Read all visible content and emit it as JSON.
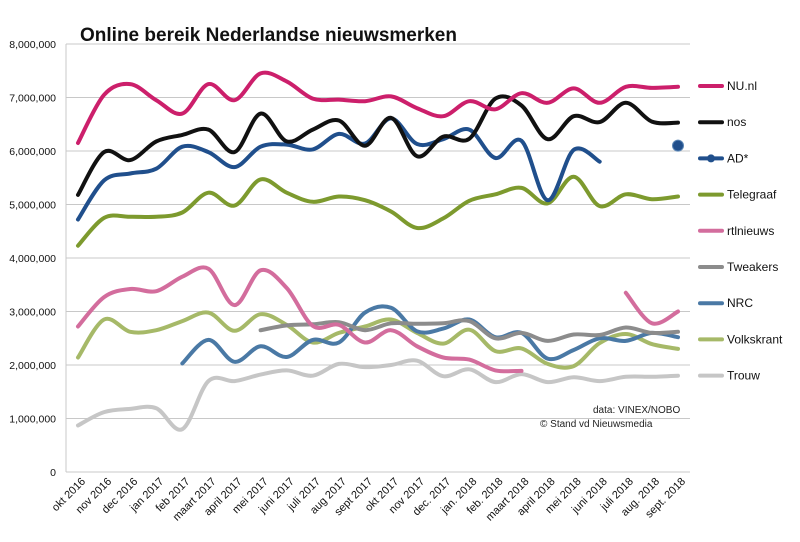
{
  "chart_data": {
    "type": "line",
    "title": "Online bereik Nederlandse nieuwsmerken",
    "xlabel": "",
    "ylabel": "",
    "ylim": [
      0,
      8000000
    ],
    "yticks": [
      0,
      1000000,
      2000000,
      3000000,
      4000000,
      5000000,
      6000000,
      7000000,
      8000000
    ],
    "ytick_labels": [
      "0",
      "1,000,000",
      "2,000,000",
      "3,000,000",
      "4,000,000",
      "5,000,000",
      "6,000,000",
      "7,000,000",
      "8,000,000"
    ],
    "grid": true,
    "legend_position": "right",
    "categories": [
      "okt 2016",
      "nov 2016",
      "dec 2016",
      "jan 2017",
      "feb 2017",
      "maart 2017",
      "april 2017",
      "mei 2017",
      "juni 2017",
      "juli 2017",
      "aug 2017",
      "sept 2017",
      "okt 2017",
      "nov 2017",
      "dec. 2017",
      "jan. 2018",
      "feb. 2018",
      "maart 2018",
      "april 2018",
      "mei 2018",
      "juni 2018",
      "juli 2018",
      "aug. 2018",
      "sept. 2018"
    ],
    "series": [
      {
        "name": "NU.nl",
        "color": "#cc1f6b",
        "values": [
          6150000,
          7050000,
          7250000,
          6950000,
          6700000,
          7250000,
          6950000,
          7450000,
          7300000,
          6980000,
          6960000,
          6930000,
          7020000,
          6800000,
          6650000,
          6930000,
          6780000,
          7080000,
          6900000,
          7170000,
          6900000,
          7200000,
          7180000,
          7200000
        ]
      },
      {
        "name": "nos",
        "color": "#111111",
        "values": [
          5180000,
          5980000,
          5830000,
          6180000,
          6300000,
          6400000,
          5980000,
          6700000,
          6180000,
          6400000,
          6570000,
          6100000,
          6620000,
          5900000,
          6270000,
          6230000,
          6980000,
          6850000,
          6220000,
          6650000,
          6540000,
          6900000,
          6550000,
          6530000
        ]
      },
      {
        "name": "AD*",
        "color": "#204f8c",
        "values": [
          4720000,
          5450000,
          5580000,
          5670000,
          6080000,
          5980000,
          5700000,
          6080000,
          6120000,
          6030000,
          6320000,
          6140000,
          6610000,
          6130000,
          6220000,
          6400000,
          5870000,
          6190000,
          5080000,
          6020000,
          5800000,
          null,
          null,
          null
        ]
      },
      {
        "name": "Telegraaf",
        "color": "#7d9a2e",
        "values": [
          4230000,
          4750000,
          4770000,
          4770000,
          4850000,
          5220000,
          4980000,
          5470000,
          5220000,
          5050000,
          5150000,
          5080000,
          4870000,
          4560000,
          4740000,
          5070000,
          5190000,
          5310000,
          5020000,
          5520000,
          4970000,
          5190000,
          5100000,
          5150000
        ]
      },
      {
        "name": "rtlnieuws",
        "color": "#d36d9d",
        "values": [
          2720000,
          3270000,
          3420000,
          3380000,
          3650000,
          3800000,
          3120000,
          3770000,
          3440000,
          2730000,
          2750000,
          2420000,
          2650000,
          2350000,
          2140000,
          2100000,
          1900000,
          1890000,
          null,
          null,
          null,
          3350000,
          2780000,
          3000000
        ]
      },
      {
        "name": "Tweakers",
        "color": "#8c8c8c",
        "values": [
          null,
          null,
          null,
          null,
          null,
          null,
          null,
          2650000,
          2740000,
          2760000,
          2800000,
          2650000,
          2780000,
          2770000,
          2780000,
          2820000,
          2500000,
          2600000,
          2450000,
          2570000,
          2560000,
          2700000,
          2600000,
          2620000
        ]
      },
      {
        "name": "NRC",
        "color": "#4a79a5",
        "values": [
          null,
          null,
          null,
          null,
          2030000,
          2470000,
          2060000,
          2350000,
          2150000,
          2470000,
          2420000,
          2980000,
          3070000,
          2630000,
          2680000,
          2850000,
          2520000,
          2600000,
          2120000,
          2280000,
          2500000,
          2450000,
          2600000,
          2520000
        ]
      },
      {
        "name": "Volkskrant",
        "color": "#a6b968",
        "values": [
          2140000,
          2850000,
          2620000,
          2650000,
          2820000,
          2980000,
          2640000,
          2950000,
          2750000,
          2420000,
          2600000,
          2720000,
          2850000,
          2600000,
          2400000,
          2660000,
          2260000,
          2310000,
          2020000,
          1980000,
          2410000,
          2580000,
          2390000,
          2300000
        ]
      },
      {
        "name": "Trouw",
        "color": "#c6c6c6",
        "values": [
          870000,
          1120000,
          1180000,
          1190000,
          800000,
          1700000,
          1700000,
          1820000,
          1900000,
          1800000,
          2020000,
          1960000,
          2000000,
          2080000,
          1790000,
          1920000,
          1680000,
          1830000,
          1680000,
          1770000,
          1700000,
          1780000,
          1780000,
          1800000
        ]
      }
    ],
    "annotations": [
      "data: VINEX/NOBO",
      "© Stand vd Nieuwsmedia"
    ],
    "extra_points": [
      {
        "series": "AD*",
        "category": "sept. 2018",
        "value": 6100000
      }
    ]
  }
}
